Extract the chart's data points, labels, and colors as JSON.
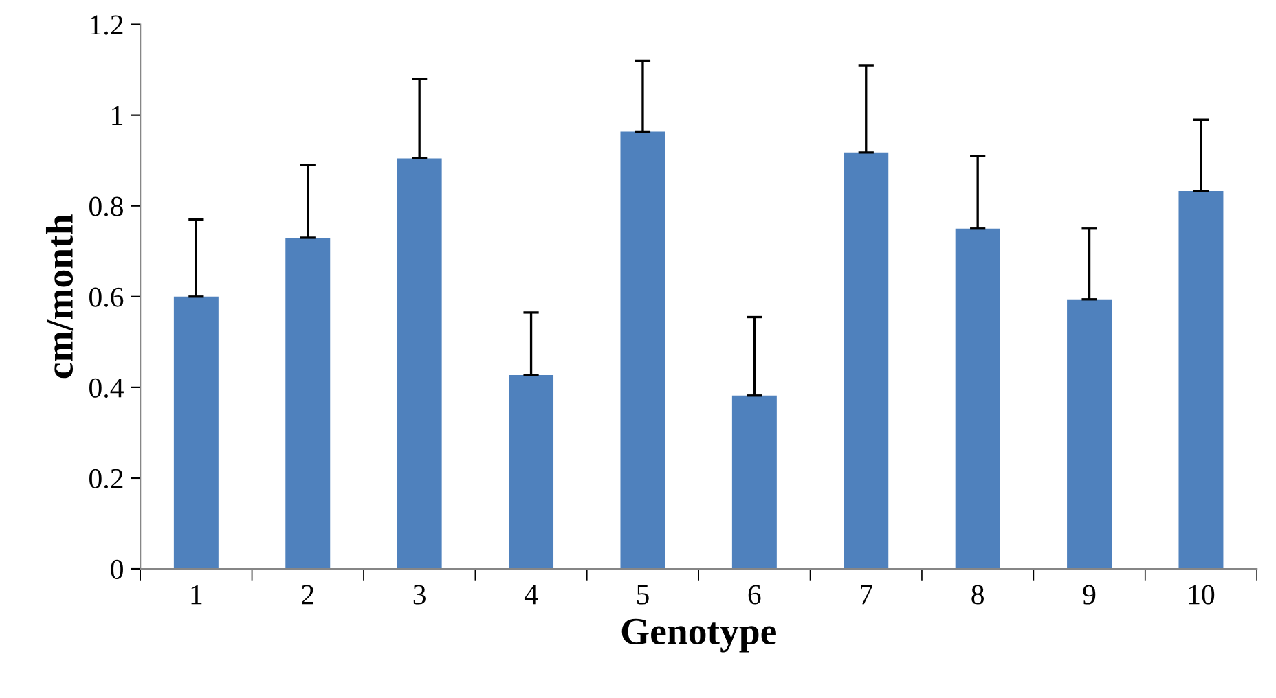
{
  "chart_data": {
    "type": "bar",
    "xlabel": "Genotype",
    "ylabel": "cm/month",
    "categories": [
      "1",
      "2",
      "3",
      "4",
      "5",
      "6",
      "7",
      "8",
      "9",
      "10"
    ],
    "values": [
      0.6,
      0.73,
      0.905,
      0.427,
      0.964,
      0.382,
      0.918,
      0.75,
      0.594,
      0.833
    ],
    "errors": [
      [
        0.6,
        0.77
      ],
      [
        0.73,
        0.89
      ],
      [
        0.905,
        1.08
      ],
      [
        0.427,
        0.565
      ],
      [
        0.964,
        1.12
      ],
      [
        0.382,
        0.555
      ],
      [
        0.918,
        1.11
      ],
      [
        0.75,
        0.91
      ],
      [
        0.594,
        0.75
      ],
      [
        0.833,
        0.99
      ]
    ],
    "color": "#4f81bd",
    "ylim": [
      0,
      1.2
    ],
    "yticks": [
      0,
      {
        "value": 0.2,
        "label": "0.2"
      },
      {
        "value": 0.4,
        "label": "0.4"
      },
      {
        "value": 0.6,
        "label": "0.6"
      },
      {
        "value": 0.8,
        "label": "0.8"
      },
      1,
      {
        "value": 1.2,
        "label": "1.2"
      }
    ],
    "grid": false,
    "legend": false
  }
}
